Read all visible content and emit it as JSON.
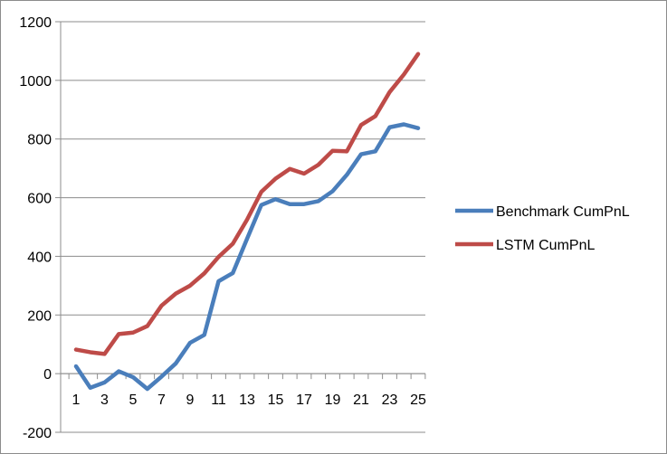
{
  "chart_data": {
    "type": "line",
    "title": "",
    "xlabel": "",
    "ylabel": "",
    "x": [
      1,
      2,
      3,
      4,
      5,
      6,
      7,
      8,
      9,
      10,
      11,
      12,
      13,
      14,
      15,
      16,
      17,
      18,
      19,
      20,
      21,
      22,
      23,
      24,
      25
    ],
    "x_tick_labels": [
      "1",
      "3",
      "5",
      "7",
      "9",
      "11",
      "13",
      "15",
      "17",
      "19",
      "21",
      "23",
      "25"
    ],
    "y_tick_labels": [
      "-200",
      "0",
      "200",
      "400",
      "600",
      "800",
      "1000",
      "1200"
    ],
    "ylim": [
      -200,
      1200
    ],
    "y_ticks": [
      -200,
      0,
      200,
      400,
      600,
      800,
      1000,
      1200
    ],
    "grid": "horizontal",
    "legend_position": "right",
    "series": [
      {
        "name": "Benchmark CumPnL",
        "color": "#4a7ebb",
        "values": [
          25,
          -48,
          -30,
          8,
          -12,
          -52,
          -10,
          35,
          105,
          132,
          315,
          343,
          460,
          575,
          595,
          578,
          578,
          588,
          622,
          678,
          748,
          758,
          840,
          850,
          837
        ]
      },
      {
        "name": "LSTM CumPnL",
        "color": "#be4b48",
        "values": [
          82,
          73,
          67,
          135,
          140,
          162,
          232,
          273,
          300,
          342,
          398,
          443,
          525,
          620,
          665,
          698,
          682,
          712,
          760,
          758,
          848,
          878,
          960,
          1020,
          1090
        ]
      }
    ]
  }
}
